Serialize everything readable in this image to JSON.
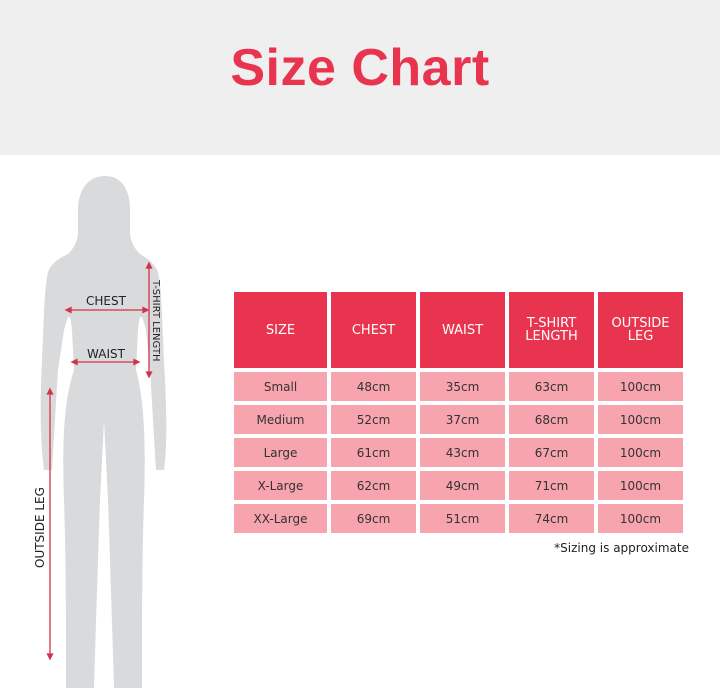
{
  "title": "Size Chart",
  "figure": {
    "chest": "CHEST",
    "waist": "WAIST",
    "tshirt_length": "T-SHIRT LENGTH",
    "outside_leg": "OUTSIDE LEG"
  },
  "colors": {
    "accent": "#e8344e",
    "row": "#f7a4ae",
    "band": "#efefef",
    "silhouette": "#d9dadc"
  },
  "table": {
    "headers": [
      "SIZE",
      "CHEST",
      "WAIST",
      "T-SHIRT\nLENGTH",
      "OUTSIDE\nLEG"
    ],
    "rows": [
      [
        "Small",
        "48cm",
        "35cm",
        "63cm",
        "100cm"
      ],
      [
        "Medium",
        "52cm",
        "37cm",
        "68cm",
        "100cm"
      ],
      [
        "Large",
        "61cm",
        "43cm",
        "67cm",
        "100cm"
      ],
      [
        "X-Large",
        "62cm",
        "49cm",
        "71cm",
        "100cm"
      ],
      [
        "XX-Large",
        "69cm",
        "51cm",
        "74cm",
        "100cm"
      ]
    ]
  },
  "note": "*Sizing is approximate"
}
